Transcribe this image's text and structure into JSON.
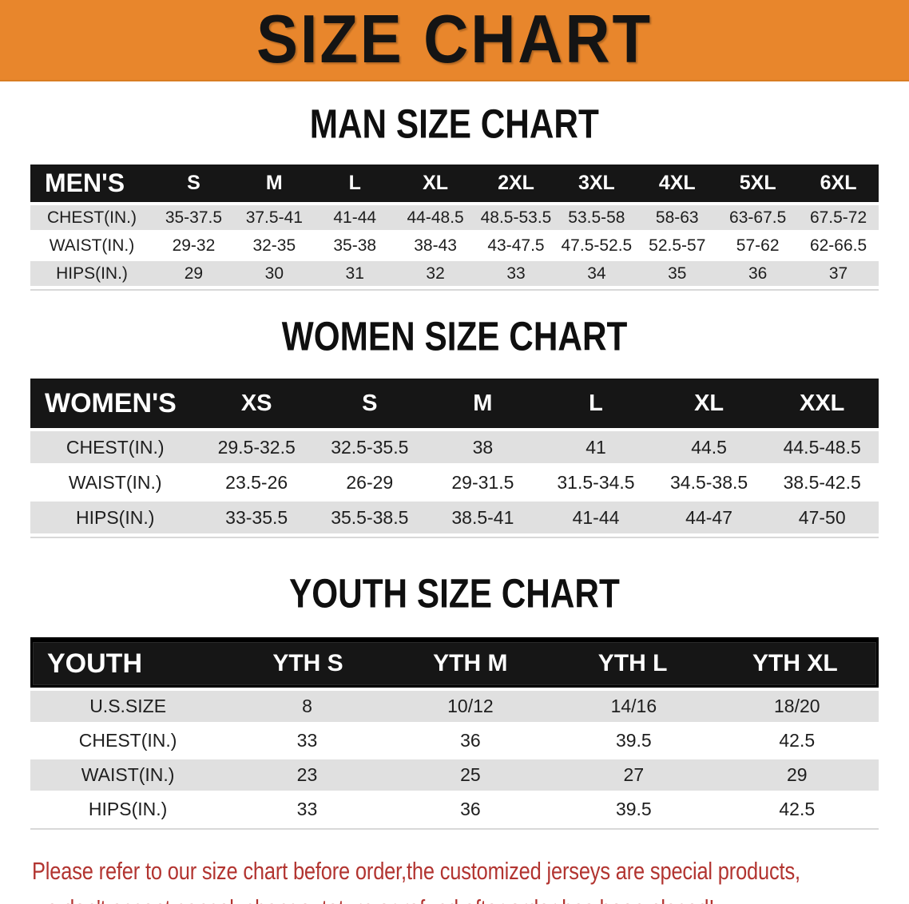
{
  "banner": {
    "title": "SIZE CHART",
    "bg_color": "#E8862C",
    "text_color": "#141414"
  },
  "sections": {
    "men": {
      "title": "MAN SIZE CHART",
      "table": {
        "label": "MEN'S",
        "columns": [
          "S",
          "M",
          "L",
          "XL",
          "2XL",
          "3XL",
          "4XL",
          "5XL",
          "6XL"
        ],
        "rows": [
          {
            "label": "CHEST(IN.)",
            "values": [
              "35-37.5",
              "37.5-41",
              "41-44",
              "44-48.5",
              "48.5-53.5",
              "53.5-58",
              "58-63",
              "63-67.5",
              "67.5-72"
            ]
          },
          {
            "label": "WAIST(IN.)",
            "values": [
              "29-32",
              "32-35",
              "35-38",
              "38-43",
              "43-47.5",
              "47.5-52.5",
              "52.5-57",
              "57-62",
              "62-66.5"
            ]
          },
          {
            "label": "HIPS(IN.)",
            "values": [
              "29",
              "30",
              "31",
              "32",
              "33",
              "34",
              "35",
              "36",
              "37"
            ]
          }
        ]
      }
    },
    "women": {
      "title": "WOMEN SIZE CHART",
      "table": {
        "label": "WOMEN'S",
        "columns": [
          "XS",
          "S",
          "M",
          "L",
          "XL",
          "XXL"
        ],
        "rows": [
          {
            "label": "CHEST(IN.)",
            "values": [
              "29.5-32.5",
              "32.5-35.5",
              "38",
              "41",
              "44.5",
              "44.5-48.5"
            ]
          },
          {
            "label": "WAIST(IN.)",
            "values": [
              "23.5-26",
              "26-29",
              "29-31.5",
              "31.5-34.5",
              "34.5-38.5",
              "38.5-42.5"
            ]
          },
          {
            "label": "HIPS(IN.)",
            "values": [
              "33-35.5",
              "35.5-38.5",
              "38.5-41",
              "41-44",
              "44-47",
              "47-50"
            ]
          }
        ]
      }
    },
    "youth": {
      "title": "YOUTH SIZE CHART",
      "table": {
        "label": "YOUTH",
        "columns": [
          "YTH S",
          "YTH M",
          "YTH L",
          "YTH XL"
        ],
        "rows": [
          {
            "label": "U.S.SIZE",
            "values": [
              "8",
              "10/12",
              "14/16",
              "18/20"
            ]
          },
          {
            "label": "CHEST(IN.)",
            "values": [
              "33",
              "36",
              "39.5",
              "42.5"
            ]
          },
          {
            "label": "WAIST(IN.)",
            "values": [
              "23",
              "25",
              "27",
              "29"
            ]
          },
          {
            "label": "HIPS(IN.)",
            "values": [
              "33",
              "36",
              "39.5",
              "42.5"
            ]
          }
        ]
      }
    }
  },
  "disclaimer": {
    "color": "#B23430",
    "lines": [
      "Please refer to our size chart before order,the customized jerseys are special products,",
      "we don't accept cancel, change, teturn or refund after order has been placed!"
    ]
  }
}
